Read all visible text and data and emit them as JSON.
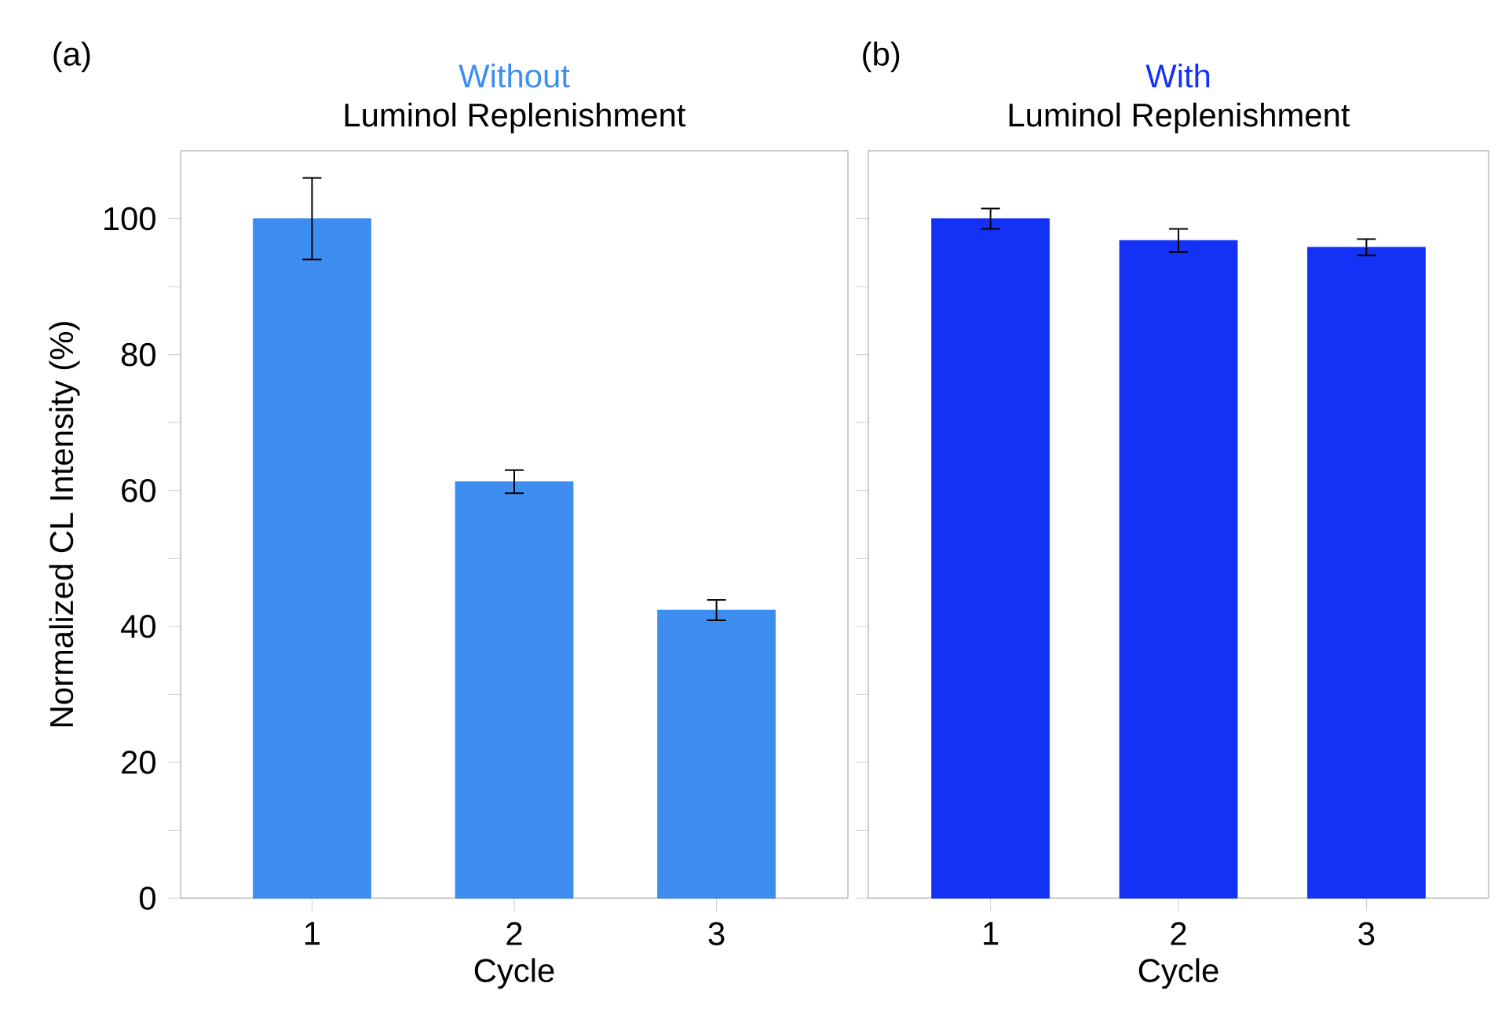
{
  "chart_data": [
    {
      "type": "bar",
      "title": "Without",
      "subtitle": "Luminol Replenishment",
      "xlabel": "Cycle",
      "ylabel": "Normalized CL Intensity (%)",
      "annotations": [
        "(a)"
      ],
      "categories": [
        "1",
        "2",
        "3"
      ],
      "values": [
        100,
        61.3,
        42.4
      ],
      "errors": [
        6,
        1.7,
        1.5
      ],
      "color": "#3d8ef0",
      "ylim": [
        0,
        110
      ],
      "yticks": [
        0,
        {
          "value": 10,
          "label": null
        },
        20,
        {
          "value": 30,
          "label": null
        },
        40,
        {
          "value": 50,
          "label": null
        },
        60,
        {
          "value": 70,
          "label": null
        },
        80,
        {
          "value": 90,
          "label": null
        },
        100
      ],
      "grid": false
    },
    {
      "type": "bar",
      "title": "With",
      "subtitle": "Luminol Replenishment",
      "xlabel": "Cycle",
      "annotations": [
        "(b)"
      ],
      "categories": [
        "1",
        "2",
        "3"
      ],
      "values": [
        100,
        96.8,
        95.8
      ],
      "errors": [
        1.5,
        1.7,
        1.2
      ],
      "color": "#1432f5",
      "ylim": [
        0,
        110
      ],
      "yticks": [
        0,
        {
          "value": 10,
          "label": null
        },
        20,
        {
          "value": 30,
          "label": null
        },
        40,
        {
          "value": 50,
          "label": null
        },
        60,
        {
          "value": 70,
          "label": null
        },
        80,
        {
          "value": 90,
          "label": null
        },
        100
      ],
      "tick_labels": "x",
      "grid": false
    }
  ]
}
